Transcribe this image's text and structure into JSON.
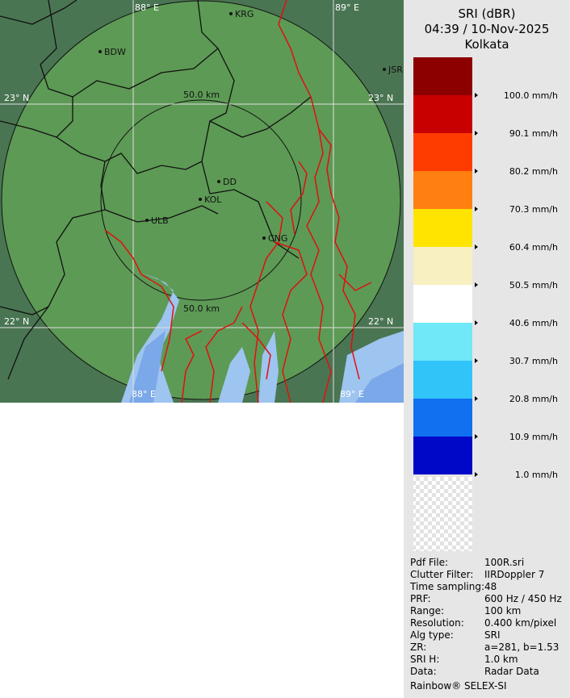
{
  "header": {
    "title": "SRI (dBR)",
    "time": "04:39 / 10-Nov-2025",
    "station": "Kolkata"
  },
  "map": {
    "grid_labels": [
      "88° E",
      "89° E",
      "23° N",
      "23° N",
      "22° N",
      "22° N",
      "88° E",
      "89° E"
    ],
    "range_labels": [
      "50.0 km",
      "50.0 km"
    ],
    "places": [
      "KRG",
      "BDW",
      "JSR",
      "DD",
      "KOL",
      "ULB",
      "CNG"
    ]
  },
  "legend": {
    "colors": [
      "#8c0000",
      "#c80000",
      "#ff3c00",
      "#ff8010",
      "#ffe400",
      "#f8f0c0",
      "#ffffff",
      "#70e8f8",
      "#30c4f8",
      "#1070f0",
      "#0008c8"
    ],
    "labels": [
      "100.0 mm/h",
      "90.1 mm/h",
      "80.2 mm/h",
      "70.3 mm/h",
      "60.4 mm/h",
      "50.5 mm/h",
      "40.6 mm/h",
      "30.7 mm/h",
      "20.8 mm/h",
      "10.9 mm/h",
      "1.0 mm/h"
    ]
  },
  "info": {
    "rows": [
      [
        "Pdf File:",
        "100R.sri"
      ],
      [
        "Clutter Filter:",
        "IIRDoppler 7"
      ],
      [
        "Time sampling:",
        "48"
      ],
      [
        "PRF:",
        "600 Hz / 450 Hz"
      ],
      [
        "Range:",
        "100 km"
      ],
      [
        "Resolution:",
        "0.400 km/pixel"
      ],
      [
        "Alg type:",
        "SRI"
      ],
      [
        "ZR:",
        "a=281, b=1.53"
      ],
      [
        "SRI H:",
        "1.0 km"
      ],
      [
        "Data:",
        "Radar Data"
      ]
    ]
  },
  "footer": "Rainbow® SELEX-SI"
}
